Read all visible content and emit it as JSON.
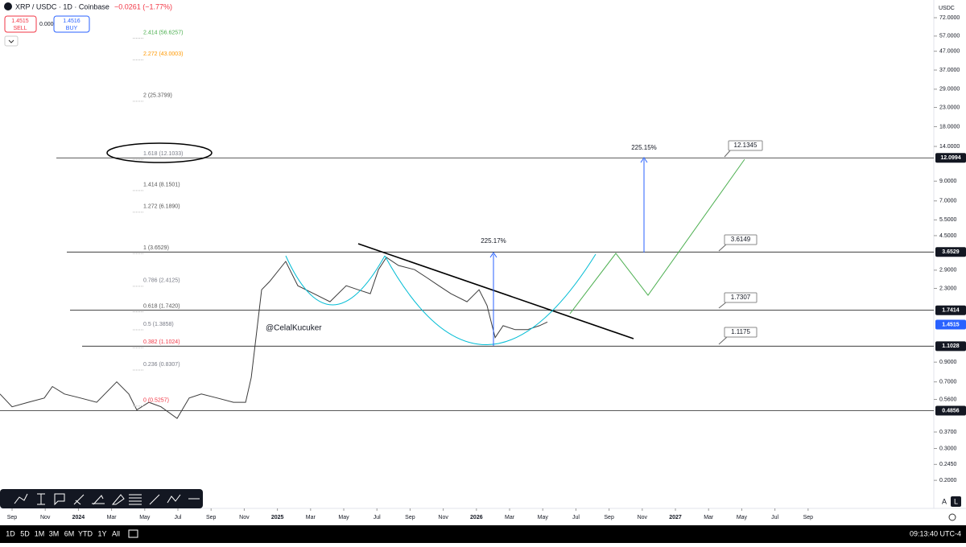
{
  "header": {
    "symbol": "XRP / USDC · 1D · Coinbase",
    "change": "−0.0261 (−1.77%)",
    "sell_price": "1.4515",
    "sell": "SELL",
    "spread": "0.0001",
    "buy_price": "1.4516",
    "buy": "BUY",
    "currency": "USDC"
  },
  "footer": {
    "ranges": [
      "1D",
      "5D",
      "1M",
      "3M",
      "6M",
      "YTD",
      "1Y",
      "All"
    ],
    "clock": "09:13:40 UTC-4",
    "auto": "A",
    "log": "L"
  },
  "chart_data": {
    "type": "line",
    "log": true,
    "color": "#3a3a3a",
    "x": [
      -0.73,
      0,
      0.97,
      1.94,
      2.43,
      3.16,
      4.13,
      5.1,
      6.31,
      7.04,
      7.52,
      8.25,
      8.98,
      9.95,
      10.68,
      11.41,
      12.38,
      13.35,
      14.08,
      14.42,
      14.71,
      15.05,
      15.53,
      16.5,
      17.23,
      18.2,
      19.17,
      20.15,
      20.87,
      21.6,
      22.09,
      22.57,
      23.3,
      24.27,
      25,
      25.73,
      26.46,
      27.43,
      28.16,
      28.64,
      29.13,
      29.61,
      30.34,
      31.07,
      31.8,
      32.28
    ],
    "values": [
      0.6,
      0.51,
      0.54,
      0.57,
      0.66,
      0.6,
      0.57,
      0.54,
      0.7,
      0.6,
      0.49,
      0.54,
      0.51,
      0.44,
      0.57,
      0.6,
      0.57,
      0.54,
      0.54,
      0.74,
      1.23,
      2.26,
      2.51,
      3.24,
      2.38,
      2.15,
      1.94,
      2.38,
      2.26,
      2.15,
      2.92,
      3.41,
      3.08,
      2.92,
      2.64,
      2.38,
      2.15,
      1.94,
      2.26,
      1.85,
      1.23,
      1.43,
      1.36,
      1.36,
      1.43,
      1.5
    ],
    "xlim": [
      -0.728,
      55.58
    ],
    "ylim": [
      0.14,
      90.2
    ],
    "xticks": [
      {
        "value": 0,
        "label": "Sep"
      },
      {
        "value": 2,
        "label": "Nov"
      },
      {
        "value": 4,
        "label": "2024"
      },
      {
        "value": 6,
        "label": "Mar"
      },
      {
        "value": 8,
        "label": "May"
      },
      {
        "value": 10,
        "label": "Jul"
      },
      {
        "value": 12,
        "label": "Sep"
      },
      {
        "value": 14,
        "label": "Nov"
      },
      {
        "value": 16,
        "label": "2025"
      },
      {
        "value": 18,
        "label": "Mar"
      },
      {
        "value": 20,
        "label": "May"
      },
      {
        "value": 22,
        "label": "Jul"
      },
      {
        "value": 24,
        "label": "Sep"
      },
      {
        "value": 26,
        "label": "Nov"
      },
      {
        "value": 28,
        "label": "2026"
      },
      {
        "value": 30,
        "label": "Mar"
      },
      {
        "value": 32,
        "label": "May"
      },
      {
        "value": 34,
        "label": "Jul"
      },
      {
        "value": 36,
        "label": "Sep"
      },
      {
        "value": 38,
        "label": "Nov"
      },
      {
        "value": 40,
        "label": "2027"
      },
      {
        "value": 42,
        "label": "Mar"
      },
      {
        "value": 44,
        "label": "May"
      },
      {
        "value": 46,
        "label": "Jul"
      },
      {
        "value": 48,
        "label": "Sep"
      }
    ],
    "yticks": [
      {
        "value": 72,
        "label": "72.0000"
      },
      {
        "value": 57,
        "label": "57.0000"
      },
      {
        "value": 47,
        "label": "47.0000"
      },
      {
        "value": 37,
        "label": "37.0000"
      },
      {
        "value": 29,
        "label": "29.0000"
      },
      {
        "value": 23,
        "label": "23.0000"
      },
      {
        "value": 18,
        "label": "18.0000"
      },
      {
        "value": 14,
        "label": "14.0000"
      },
      {
        "value": 9,
        "label": "9.0000"
      },
      {
        "value": 7,
        "label": "7.0000"
      },
      {
        "value": 5.5,
        "label": "5.5000"
      },
      {
        "value": 4.5,
        "label": "4.5000"
      },
      {
        "value": 2.9,
        "label": "2.9000"
      },
      {
        "value": 2.3,
        "label": "2.3000"
      },
      {
        "value": 0.9,
        "label": "0.9000"
      },
      {
        "value": 0.7,
        "label": "0.7000"
      },
      {
        "value": 0.56,
        "label": "0.5600"
      },
      {
        "value": 0.37,
        "label": "0.3700"
      },
      {
        "value": 0.3,
        "label": "0.3000"
      },
      {
        "value": 0.245,
        "label": "0.2450"
      },
      {
        "value": 0.2,
        "label": "0.2000"
      }
    ],
    "price_lines": [
      {
        "value": 12.0994,
        "label": "12.0994"
      },
      {
        "value": 3.6529,
        "label": "3.6529"
      },
      {
        "value": 1.7414,
        "label": "1.7414"
      },
      {
        "value": 1.1028,
        "label": "1.1028"
      },
      {
        "value": 0.4856,
        "label": "0.4856"
      }
    ],
    "last_price": {
      "value": 1.4515,
      "label": "1.4515",
      "color": "#2962ff"
    },
    "fib_levels": [
      {
        "value": 56.6257,
        "label": "2.414 (56.6257)",
        "color": "#4caf50"
      },
      {
        "value": 43.0003,
        "label": "2.272 (43.0003)",
        "color": "#ff9800"
      },
      {
        "value": 25.3799,
        "label": "2 (25.3799)",
        "color": "#555555"
      },
      {
        "value": 12.1033,
        "label": "1.618 (12.1033)",
        "color": "#787b86"
      },
      {
        "value": 8.1501,
        "label": "1.414 (8.1501)",
        "color": "#555555"
      },
      {
        "value": 6.189,
        "label": "1.272 (6.1890)",
        "color": "#555555"
      },
      {
        "value": 3.6529,
        "label": "1 (3.6529)",
        "color": "#555555"
      },
      {
        "value": 2.4125,
        "label": "0.786 (2.4125)",
        "color": "#787b86"
      },
      {
        "value": 1.742,
        "label": "0.618 (1.7420)",
        "color": "#555555"
      },
      {
        "value": 1.3858,
        "label": "0.5 (1.3858)",
        "color": "#787b86"
      },
      {
        "value": 1.1024,
        "label": "0.382 (1.1024)",
        "color": "#f23645"
      },
      {
        "value": 0.8307,
        "label": "0.236 (0.8307)",
        "color": "#787b86"
      },
      {
        "value": 0.5257,
        "label": "0 (0.5257)",
        "color": "#f23645"
      }
    ],
    "annotations": {
      "watermark": "@CelalKucuker",
      "move_1": "225.17%",
      "move_2": "225.15%",
      "callout_1": "12.1345",
      "callout_2": "3.6149",
      "callout_3": "1.7307",
      "callout_4": "1.1175"
    }
  }
}
